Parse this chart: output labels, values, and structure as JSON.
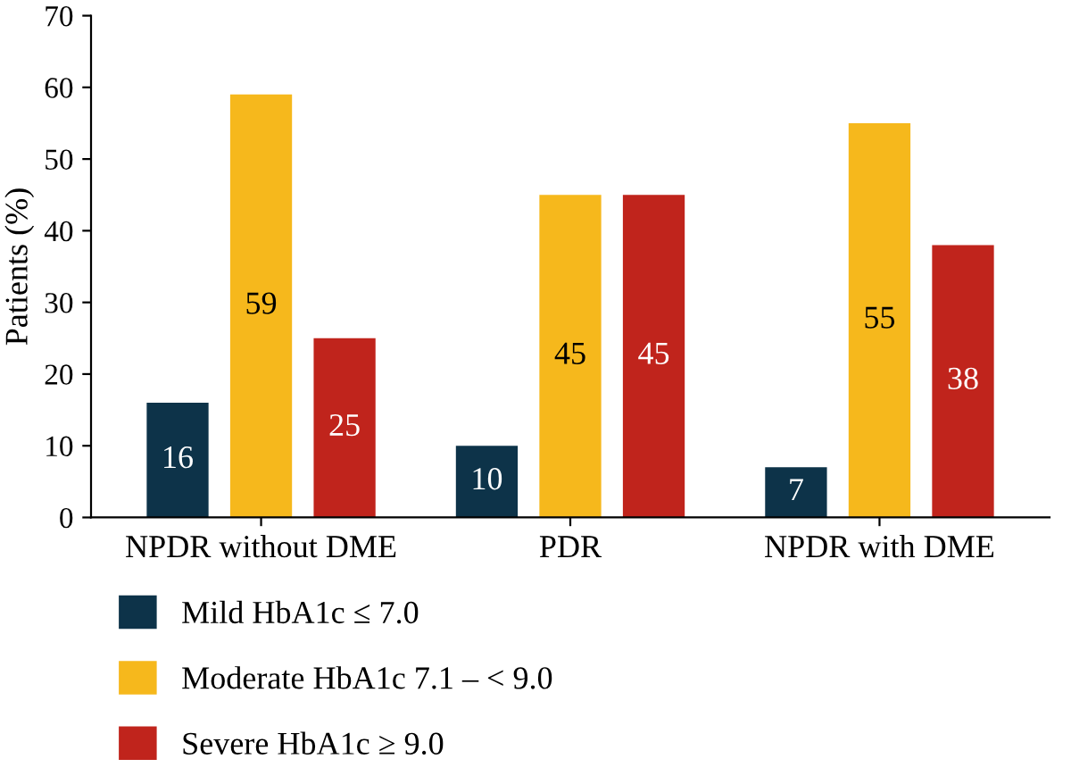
{
  "chart_data": {
    "type": "bar",
    "ylabel": "Patients (%)",
    "categories": [
      "NPDR without DME",
      "PDR",
      "NPDR with DME"
    ],
    "series": [
      {
        "name": "Mild HbA1c ≤ 7.0",
        "color": "#0d3349",
        "values": [
          16,
          10,
          7
        ]
      },
      {
        "name": "Moderate HbA1c 7.1 – < 9.0",
        "color": "#f6b81c",
        "values": [
          59,
          45,
          55
        ]
      },
      {
        "name": "Severe HbA1c ≥ 9.0",
        "color": "#c0241c",
        "values": [
          25,
          45,
          38
        ]
      }
    ],
    "ylim": [
      0,
      70
    ],
    "yticks": [
      0,
      10,
      20,
      30,
      40,
      50,
      60,
      70
    ],
    "grid": false,
    "legend": "bottom",
    "data_labels": true
  }
}
